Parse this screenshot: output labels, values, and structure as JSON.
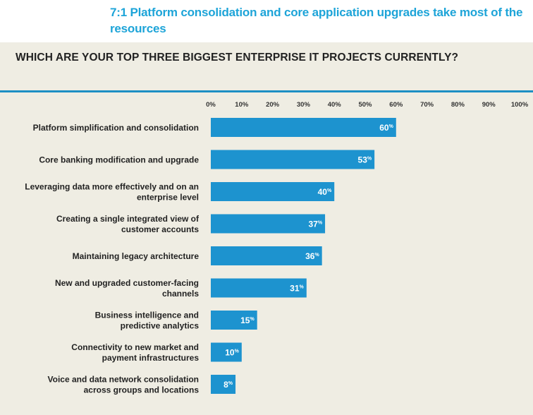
{
  "header": {
    "title": "7:1 Platform consolidation and core application upgrades take most of the resources"
  },
  "chart_data": {
    "type": "bar",
    "orientation": "horizontal",
    "title": "WHICH ARE YOUR TOP THREE BIGGEST ENTERPRISE IT PROJECTS CURRENTLY?",
    "xlim": [
      0,
      100
    ],
    "ticks": [
      "0%",
      "10%",
      "20%",
      "30%",
      "40%",
      "50%",
      "60%",
      "70%",
      "80%",
      "90%",
      "100%"
    ],
    "categories": [
      "Platform simplification and consolidation",
      "Core banking modification and upgrade",
      "Leveraging data more effectively and on an enterprise level",
      "Creating a single integrated view of customer accounts",
      "Maintaining legacy architecture",
      "New and upgraded customer-facing channels",
      "Business intelligence and predictive analytics",
      "Connectivity to new market and payment infrastructures",
      "Voice and data network consolidation across groups and locations"
    ],
    "category_lines": [
      [
        "Platform simplification and consolidation"
      ],
      [
        "Core banking modification and upgrade"
      ],
      [
        "Leveraging data more effectively and on an",
        "enterprise level"
      ],
      [
        "Creating a single integrated view of",
        "customer accounts"
      ],
      [
        "Maintaining legacy architecture"
      ],
      [
        "New and upgraded customer-facing",
        "channels"
      ],
      [
        "Business intelligence and",
        "predictive analytics"
      ],
      [
        "Connectivity to new market and",
        "payment infrastructures"
      ],
      [
        "Voice and data network consolidation",
        "across groups and locations"
      ]
    ],
    "values": [
      60,
      53,
      40,
      37,
      36,
      31,
      15,
      10,
      8
    ],
    "value_suffix": "%",
    "colors": {
      "bar": "#1d93cf",
      "title": "#1da4d8",
      "rule": "#1d8fc4"
    }
  }
}
